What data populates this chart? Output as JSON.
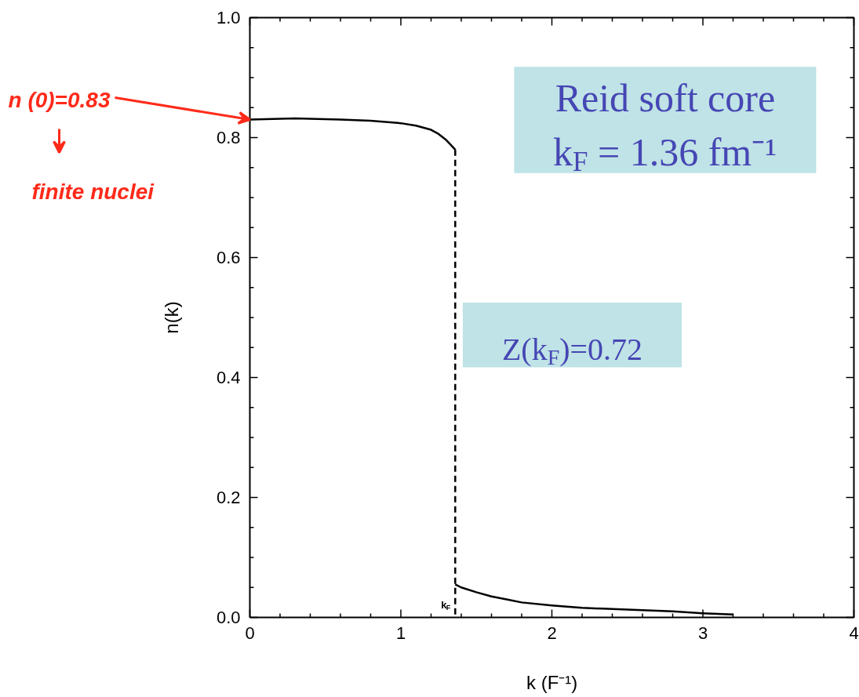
{
  "chart_data": {
    "type": "line",
    "ylabel": "n(k)",
    "xlabel": "k (F⁻¹)",
    "xlim": [
      0,
      4
    ],
    "ylim": [
      0,
      1.0
    ],
    "xticks": [
      0,
      1,
      2,
      3,
      4
    ],
    "yticks": [
      {
        "value": 0,
        "label": "0.0"
      },
      {
        "value": 0.2,
        "label": "0.2"
      },
      {
        "value": 0.4,
        "label": "0.4"
      },
      {
        "value": 0.6,
        "label": "0.6"
      },
      {
        "value": 0.8,
        "label": "0.8"
      },
      {
        "value": 1.0,
        "label": "1.0"
      }
    ],
    "grid": false,
    "marker": "none",
    "series": [
      {
        "color": "#000000",
        "line_style": "solid",
        "x": [
          0,
          0.3,
          0.6,
          0.8,
          1.0,
          1.1,
          1.2,
          1.25,
          1.3,
          1.33,
          1.36
        ],
        "values": [
          0.83,
          0.832,
          0.83,
          0.828,
          0.824,
          0.82,
          0.813,
          0.806,
          0.796,
          0.788,
          0.78
        ]
      },
      {
        "color": "#000000",
        "line_style": "solid",
        "x": [
          1.36,
          1.4,
          1.5,
          1.6,
          1.7,
          1.8,
          2.0,
          2.2,
          2.5,
          2.8,
          3.0,
          3.2
        ],
        "values": [
          0.055,
          0.05,
          0.042,
          0.035,
          0.03,
          0.025,
          0.02,
          0.016,
          0.013,
          0.01,
          0.007,
          0.005
        ]
      },
      {
        "color": "#000000",
        "line_style": "dashed",
        "x": [
          1.36,
          1.36
        ],
        "values": [
          0.78,
          0
        ]
      }
    ],
    "annotations": [
      {
        "text": "n (0)=0.83",
        "x": 0,
        "y": 0.83
      },
      "finite nuclei",
      "Reid soft core",
      "k$_{F}$ = 1.36 fm⁻¹",
      "Z(k$_{F}$)=0.72",
      {
        "text": "k$_{F}$",
        "x": 1.36,
        "y": 0
      }
    ]
  }
}
